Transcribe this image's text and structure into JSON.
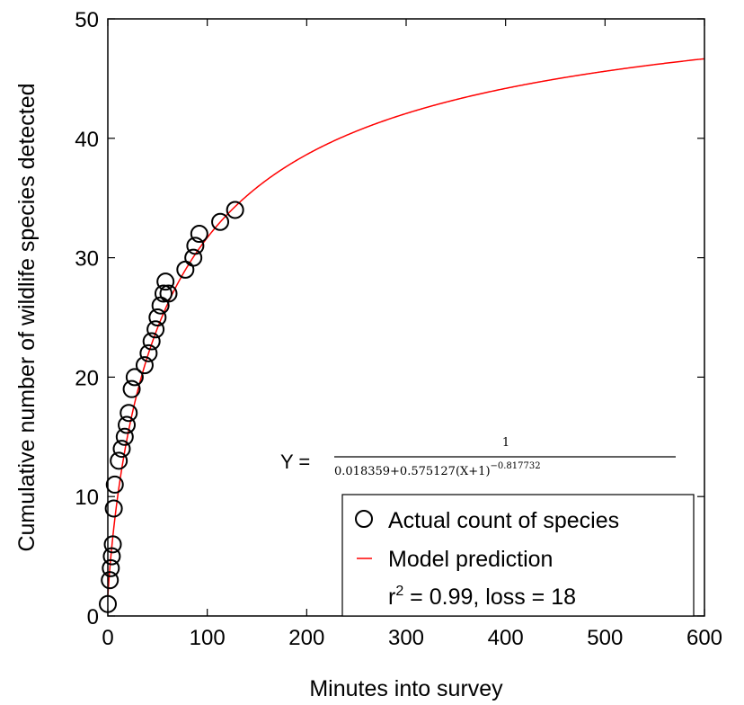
{
  "chart_data": {
    "type": "scatter",
    "xlabel": "Minutes into survey",
    "ylabel": "Cumulative number of wildlife species detected",
    "xlim": [
      0,
      600
    ],
    "ylim": [
      0,
      50
    ],
    "xticks": [
      0,
      100,
      200,
      300,
      400,
      500,
      600
    ],
    "yticks": [
      0,
      10,
      20,
      30,
      40,
      50
    ],
    "grid": false,
    "legend_position": "bottom-right",
    "series": [
      {
        "name": "Actual count of species",
        "marker": "open-circle",
        "color": "#000000",
        "points": [
          [
            0,
            1
          ],
          [
            2,
            3
          ],
          [
            3,
            4
          ],
          [
            4,
            5
          ],
          [
            5,
            6
          ],
          [
            6,
            9
          ],
          [
            7,
            11
          ],
          [
            11,
            13
          ],
          [
            14,
            14
          ],
          [
            17,
            15
          ],
          [
            19,
            16
          ],
          [
            21,
            17
          ],
          [
            24,
            19
          ],
          [
            27,
            20
          ],
          [
            37,
            21
          ],
          [
            41,
            22
          ],
          [
            44,
            23
          ],
          [
            48,
            24
          ],
          [
            50,
            25
          ],
          [
            53,
            26
          ],
          [
            56,
            27
          ],
          [
            58,
            28
          ],
          [
            61,
            27
          ],
          [
            78,
            29
          ],
          [
            86,
            30
          ],
          [
            88,
            31
          ],
          [
            92,
            32
          ],
          [
            113,
            33
          ],
          [
            128,
            34
          ]
        ]
      },
      {
        "name": "Model prediction",
        "type": "line",
        "color": "#ff0000",
        "model": {
          "a": 0.018359,
          "b": 0.575127,
          "c": -0.817732
        },
        "x_range": [
          0,
          600
        ]
      }
    ],
    "equation": {
      "lhs": "Y =",
      "numerator": "1",
      "denominator": "0.018359+0.575127(X+1)",
      "exponent": "−0.817732"
    },
    "fit_stats": {
      "r_label": "r",
      "r_sup": "2",
      "rest": " = 0.99, loss = 18"
    }
  }
}
